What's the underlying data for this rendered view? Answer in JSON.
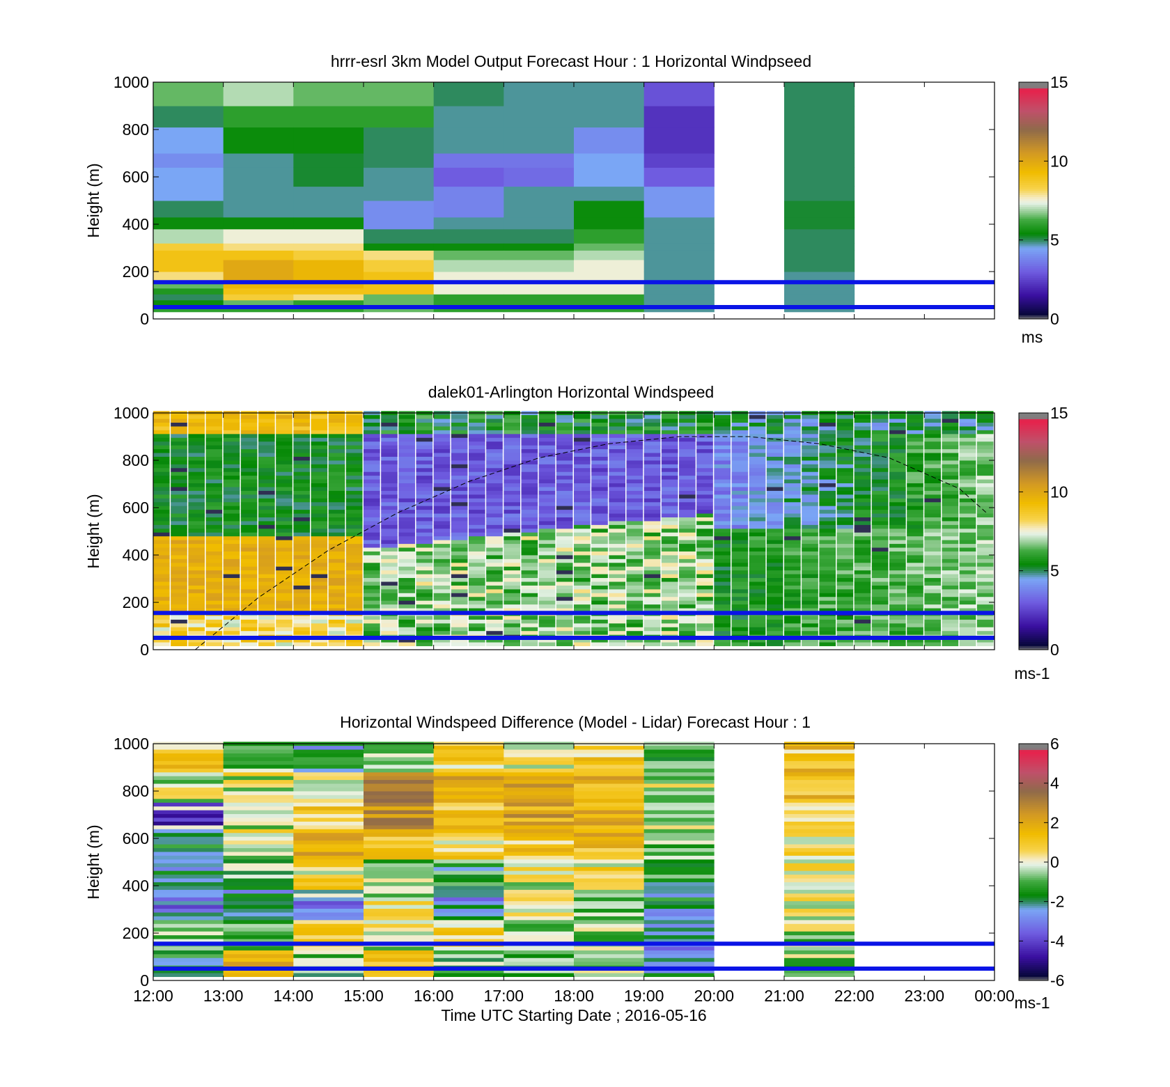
{
  "figure": {
    "xlabel": "Time UTC  Starting Date ; 2016-05-16",
    "x_tick_labels": [
      "12:00",
      "13:00",
      "14:00",
      "15:00",
      "16:00",
      "17:00",
      "18:00",
      "19:00",
      "20:00",
      "21:00",
      "22:00",
      "23:00",
      "00:00"
    ]
  },
  "chart_data": [
    {
      "type": "heatmap",
      "title": "hrrr-esrl 3km Model Output   Forecast Hour : 1 Horizontal Windpseed",
      "ylabel": "Height (m)",
      "colorbar_label": "ms",
      "colorbar_ticks": [
        "0",
        "5",
        "10",
        "15"
      ],
      "clim": [
        0,
        15
      ],
      "xlim": [
        "12:00",
        "00:00"
      ],
      "ylim": [
        0,
        1000
      ],
      "y_ticks": [
        0,
        200,
        400,
        600,
        800,
        1000
      ],
      "reference_lines_m": [
        50,
        155
      ],
      "data_gaps": [
        [
          "20:00",
          "21:00"
        ],
        [
          "22:00",
          "00:00"
        ]
      ],
      "columns": [
        {
          "start": "12:00",
          "end": "13:00",
          "values": [
            6,
            5.5,
            5,
            5.8,
            6.5,
            8,
            9,
            9,
            8.5,
            7,
            5.5,
            5,
            4.5,
            4.5,
            4,
            4.5,
            5,
            6.5
          ]
        },
        {
          "start": "13:00",
          "end": "14:00",
          "values": [
            6,
            6.5,
            8.5,
            9,
            9.5,
            10,
            10,
            9,
            8,
            7.5,
            5.5,
            4.8,
            4.8,
            4.8,
            4.8,
            5.5,
            6,
            7
          ]
        },
        {
          "start": "14:00",
          "end": "15:00",
          "values": [
            6,
            6,
            8,
            9,
            9.5,
            9.5,
            9.5,
            8.5,
            8,
            7.5,
            5.5,
            4.8,
            4.8,
            5.2,
            5.2,
            5.5,
            6,
            6.5
          ]
        },
        {
          "start": "15:00",
          "end": "16:00",
          "values": [
            6.5,
            6.5,
            6.5,
            9,
            9,
            9,
            8.5,
            8,
            5.5,
            5,
            4,
            4,
            4.8,
            4.8,
            5,
            5,
            6,
            6.5
          ]
        },
        {
          "start": "16:00",
          "end": "17:00",
          "values": [
            6,
            6,
            6,
            7.5,
            7.5,
            7.5,
            7,
            6.5,
            5.5,
            5,
            4.8,
            3.8,
            3.8,
            3,
            3.5,
            4.8,
            4.8,
            5
          ]
        },
        {
          "start": "17:00",
          "end": "18:00",
          "values": [
            6,
            6,
            6,
            7.5,
            7.5,
            7.5,
            7,
            6.5,
            5.5,
            5,
            4.8,
            4.8,
            4.8,
            3.3,
            3.5,
            4.8,
            4.8,
            4.8
          ]
        },
        {
          "start": "18:00",
          "end": "19:00",
          "values": [
            6,
            6,
            6,
            7.5,
            7.5,
            7.5,
            7.5,
            7,
            6.5,
            6,
            5.5,
            5.5,
            4.8,
            4.5,
            4.5,
            4,
            4.8,
            4.8
          ]
        },
        {
          "start": "19:00",
          "end": "20:00",
          "values": [
            4.8,
            4.8,
            4.8,
            4.8,
            4.8,
            4.8,
            4.8,
            4.8,
            4.8,
            4.8,
            4.8,
            4.2,
            4.2,
            3,
            2.5,
            2.2,
            2.2,
            2.8
          ]
        },
        {
          "start": "21:00",
          "end": "22:00",
          "values": [
            4.8,
            4.8,
            4.8,
            4.8,
            4.8,
            4.8,
            5,
            5,
            5,
            5,
            5.2,
            5.2,
            5,
            5,
            5,
            5,
            5,
            5
          ]
        }
      ]
    },
    {
      "type": "heatmap",
      "title": "dalek01-Arlington  Horizontal Windspeed",
      "ylabel": "Height (m)",
      "colorbar_label": "ms-1",
      "colorbar_ticks": [
        "0",
        "5",
        "10",
        "15"
      ],
      "clim": [
        0,
        15
      ],
      "xlim": [
        "12:00",
        "00:00"
      ],
      "ylim": [
        0,
        1000
      ],
      "y_ticks": [
        0,
        200,
        400,
        600,
        800,
        1000
      ],
      "reference_lines_m": [
        50,
        155
      ],
      "time_steps": 48,
      "time_step_minutes": 15,
      "level_step_m": 16,
      "dashed_curve": {
        "x": [
          "12:36",
          "13:30",
          "14:30",
          "15:30",
          "16:30",
          "17:30",
          "18:30",
          "19:30",
          "20:30",
          "21:30",
          "22:30",
          "23:30",
          "23:55"
        ],
        "y": [
          0,
          220,
          420,
          580,
          710,
          810,
          870,
          900,
          900,
          870,
          810,
          680,
          570
        ]
      }
    },
    {
      "type": "heatmap",
      "title": "Horizontal Windspeed Difference (Model - Lidar) Forecast Hour : 1",
      "ylabel": "Height (m)",
      "colorbar_label": "ms-1",
      "colorbar_ticks": [
        "-6",
        "-4",
        "-2",
        "0",
        "2",
        "4",
        "6"
      ],
      "clim": [
        -6,
        6
      ],
      "xlim": [
        "12:00",
        "00:00"
      ],
      "ylim": [
        0,
        1000
      ],
      "y_ticks": [
        0,
        200,
        400,
        600,
        800,
        1000
      ],
      "reference_lines_m": [
        50,
        155
      ],
      "data_gaps": [
        [
          "20:00",
          "21:00"
        ],
        [
          "22:00",
          "00:00"
        ]
      ],
      "level_step_m": 16
    }
  ],
  "colors": {
    "reference_line": "#0a14e6",
    "axis": "#000000",
    "colormap_stops": [
      "#7f7f7f",
      "#07073c",
      "#3a0fa0",
      "#6f5ce0",
      "#7aa6f5",
      "#2f8a5f",
      "#048804",
      "#42aa42",
      "#8fca8f",
      "#e6f2e6",
      "#f5ecc8",
      "#f7d24a",
      "#f0bc00",
      "#d49a22",
      "#8f6a4a",
      "#c0506a",
      "#e8204a",
      "#7f7f7f"
    ],
    "colormap_positions": [
      0,
      0.02,
      0.1,
      0.2,
      0.3,
      0.333,
      0.36,
      0.42,
      0.45,
      0.49,
      0.51,
      0.55,
      0.62,
      0.7,
      0.8,
      0.88,
      0.97,
      0.98
    ]
  }
}
